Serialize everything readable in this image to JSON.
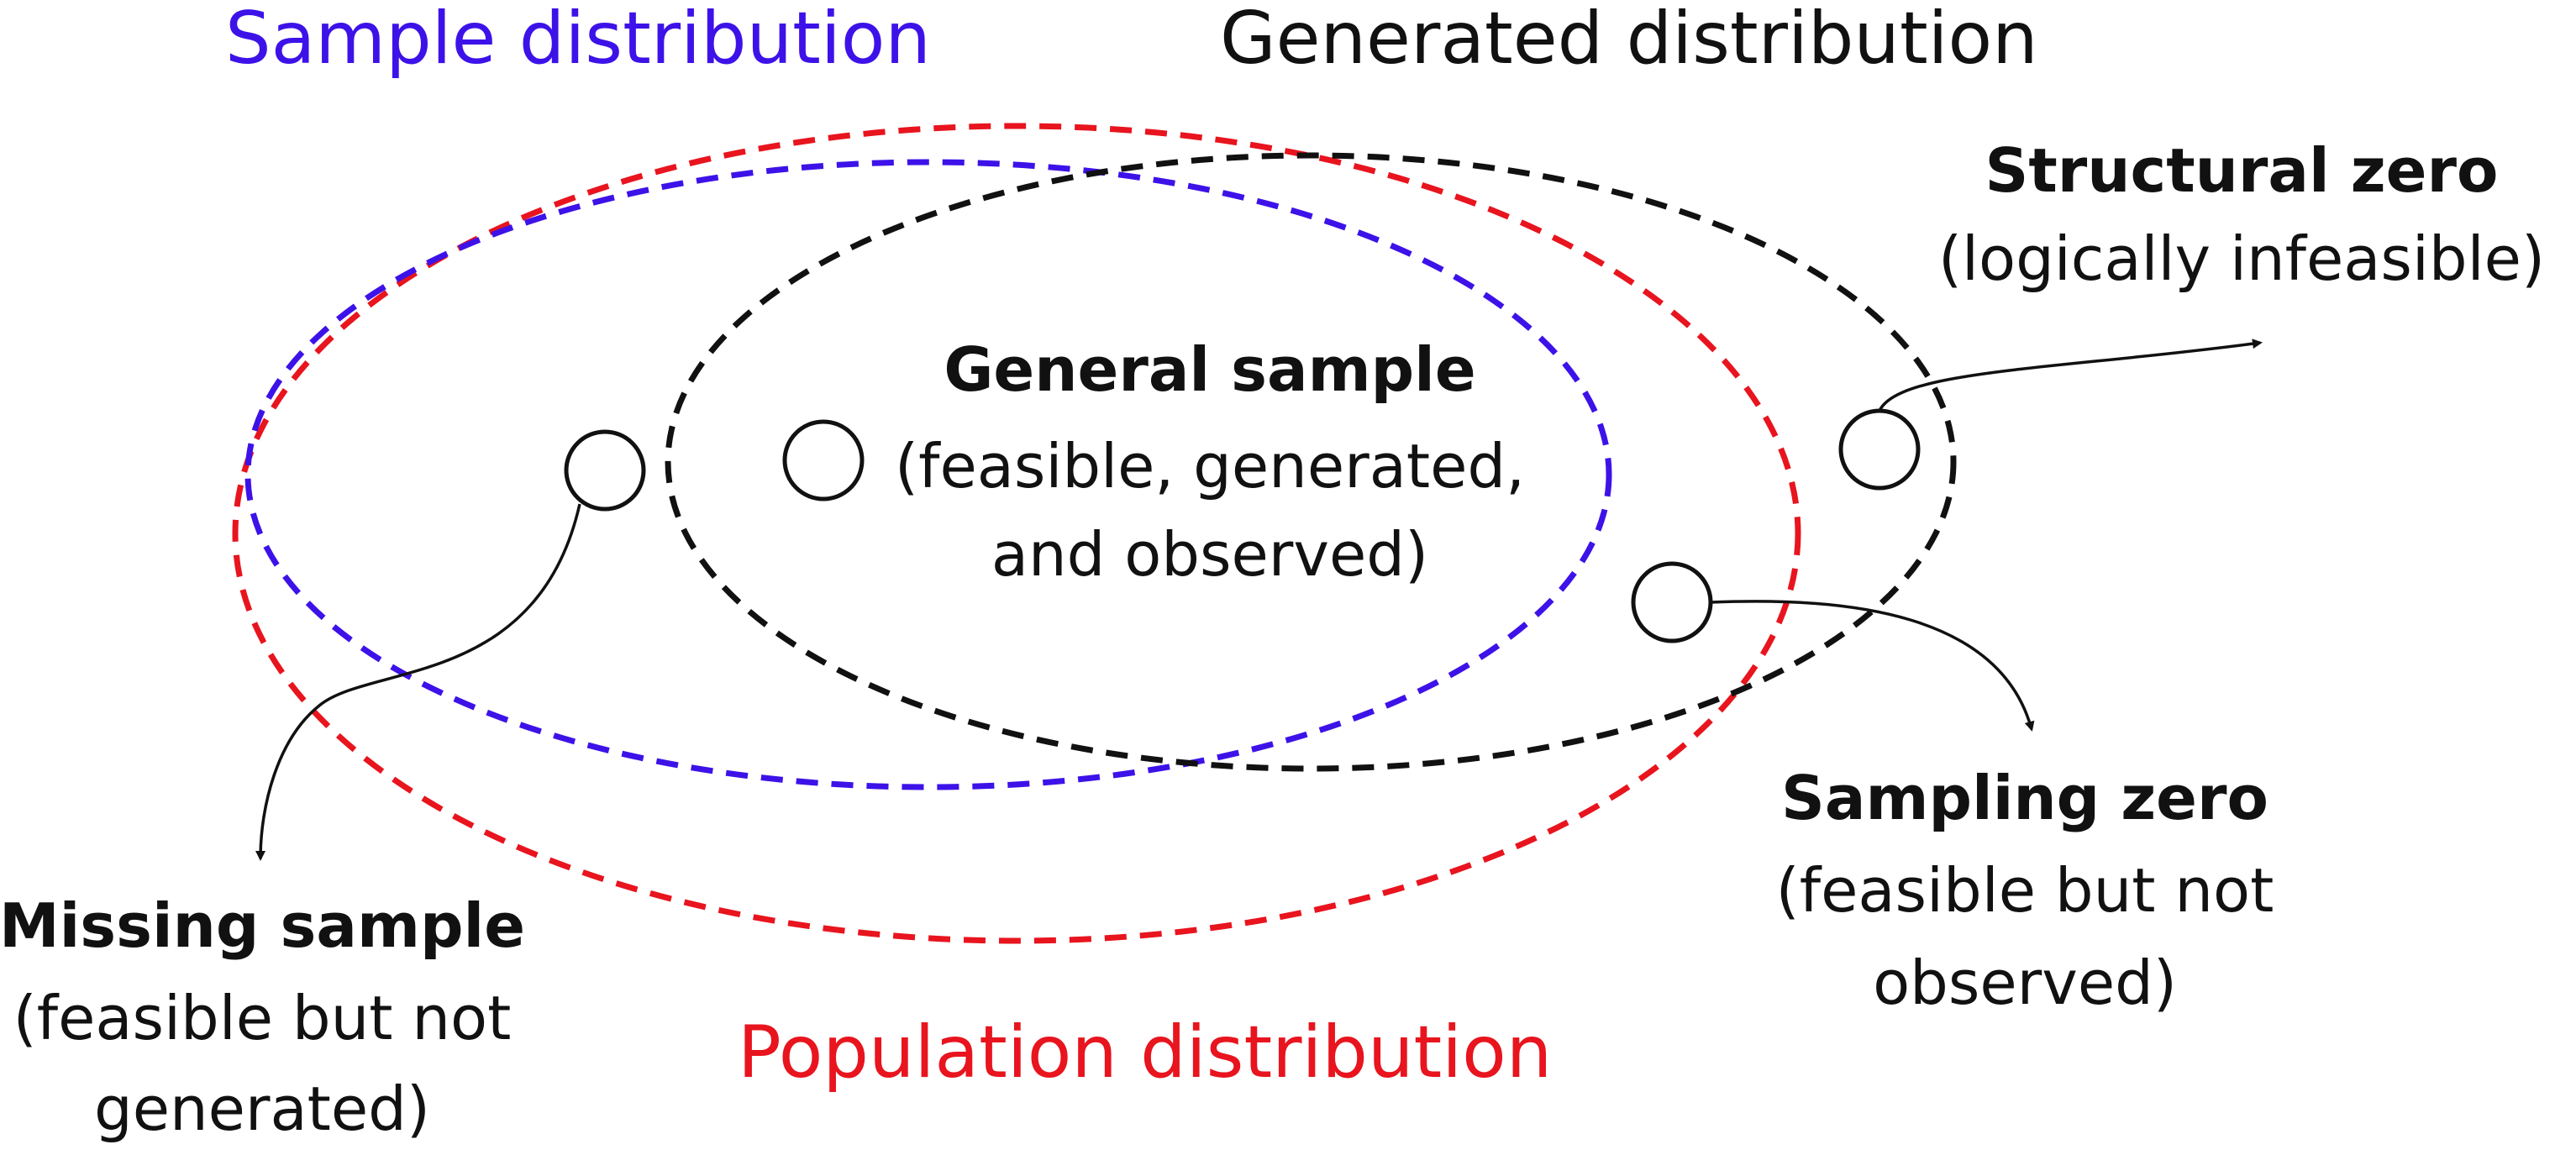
{
  "colors": {
    "population": "#e8141e",
    "sample": "#3d12e8",
    "generated": "#111111",
    "text": "#111111"
  },
  "titles": {
    "sample_distribution": "Sample distribution",
    "generated_distribution": "Generated distribution",
    "population_distribution": "Population distribution"
  },
  "general_sample": {
    "title": "General sample",
    "line1": "(feasible, generated,",
    "line2": "and observed)"
  },
  "structural_zero": {
    "title": "Structural zero",
    "line1": "(logically infeasible)"
  },
  "sampling_zero": {
    "title": "Sampling zero",
    "line1": "(feasible but not",
    "line2": "observed)"
  },
  "missing_sample": {
    "title": "Missing sample",
    "line1": "(feasible but not",
    "line2": "generated)"
  }
}
